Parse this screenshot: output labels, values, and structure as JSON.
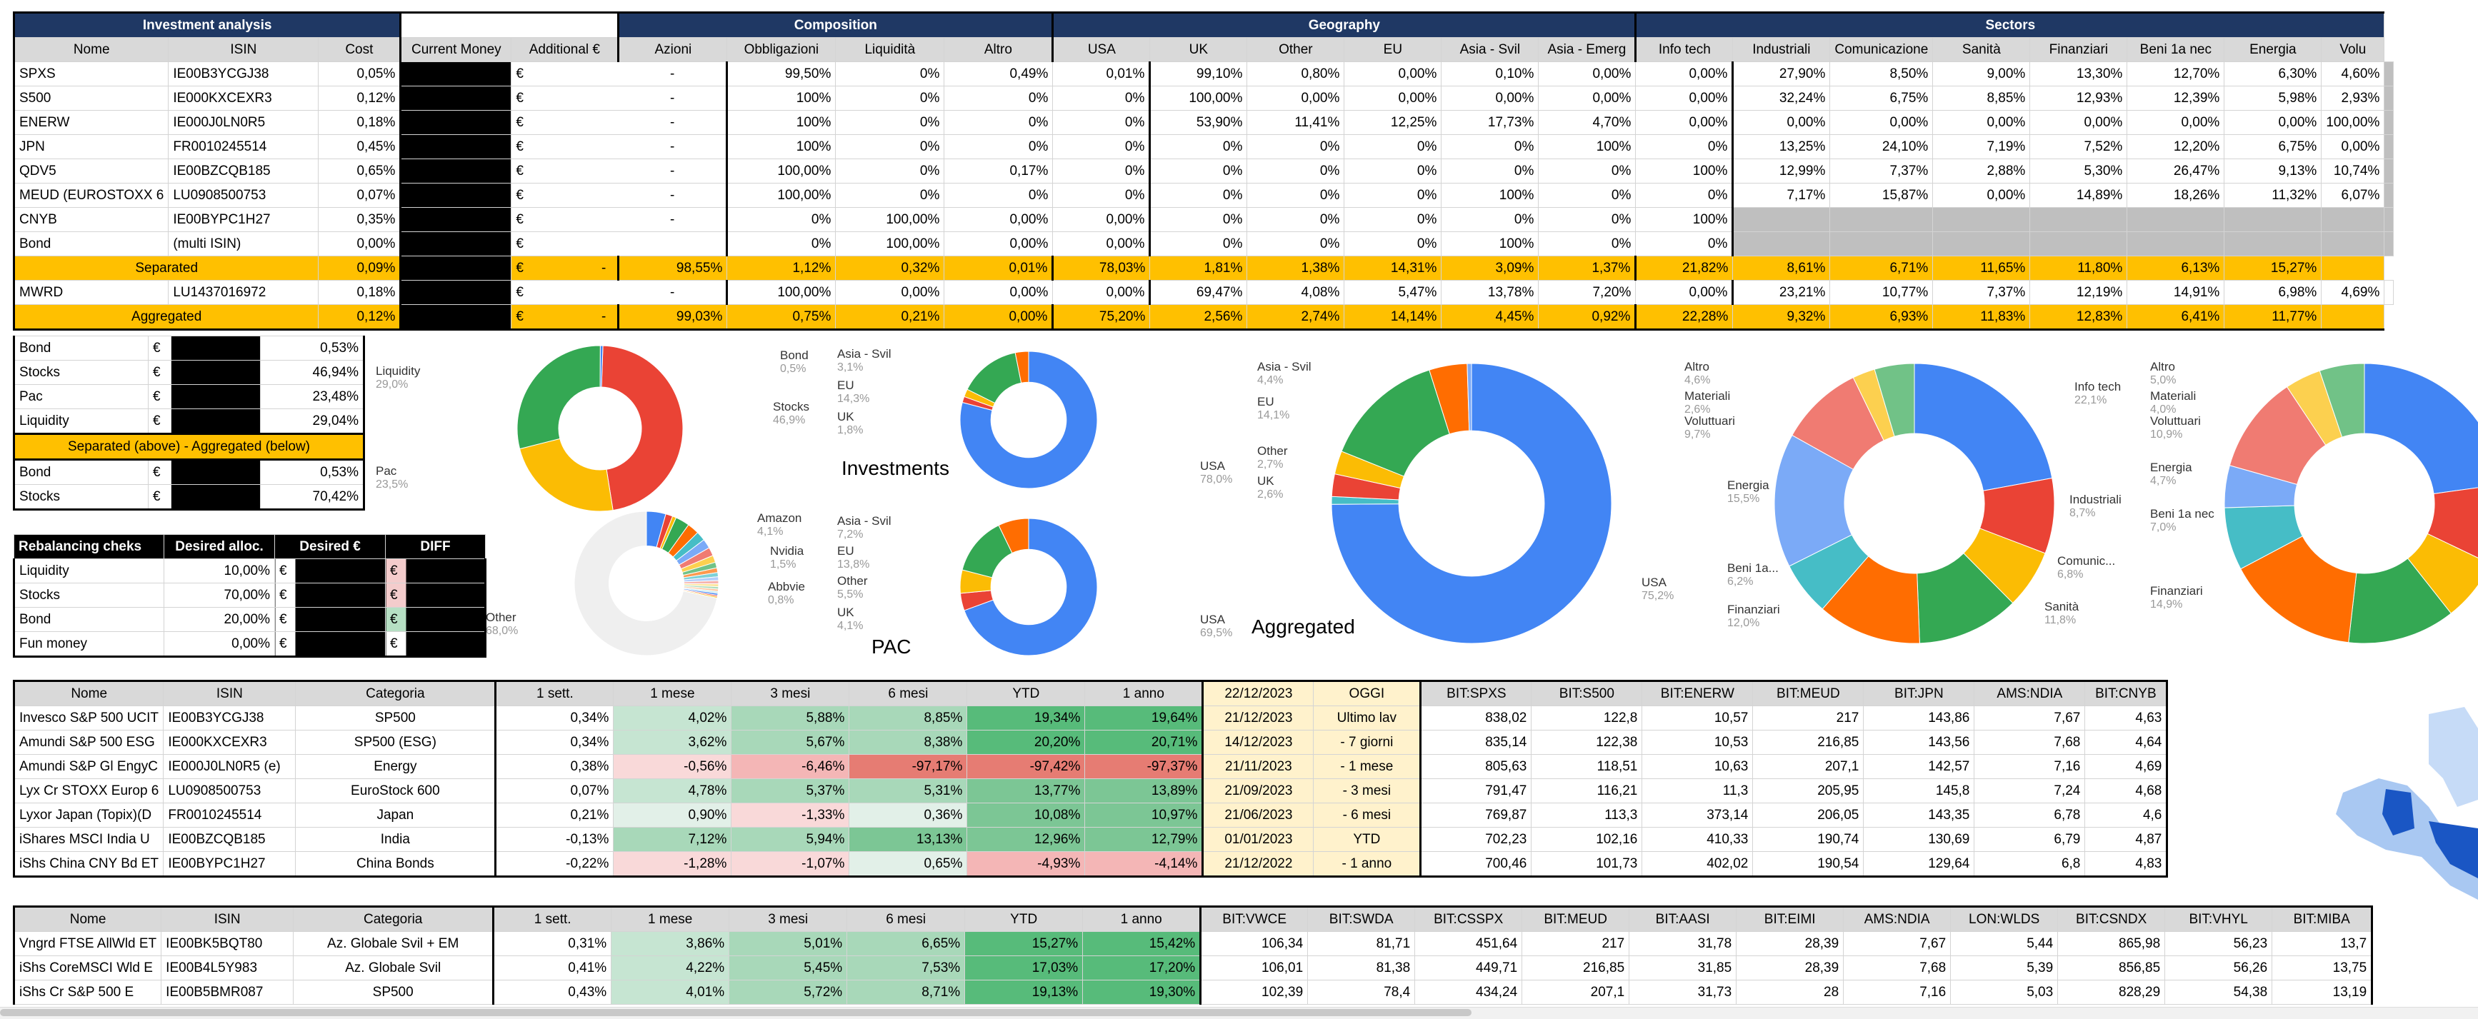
{
  "main_table": {
    "title": "Investment analysis",
    "sections": {
      "composition": "Composition",
      "geography": "Geography",
      "sectors": "Sectors"
    },
    "headers": [
      "Nome",
      "ISIN",
      "Cost",
      "Current Money",
      "Additional €",
      "Azioni",
      "Obbligazioni",
      "Liquidità",
      "Altro",
      "USA",
      "UK",
      "Other",
      "EU",
      "Asia - Svil",
      "Asia - Emerg",
      "Info tech",
      "Industriali",
      "Comunicazione",
      "Sanità",
      "Finanziari",
      "Beni 1a nec",
      "Energia",
      "Volu"
    ],
    "rows": [
      {
        "cells": [
          "SPXS",
          "IE00B3YCGJ38",
          "0,05%",
          "",
          "€",
          "-",
          "99,50%",
          "0%",
          "0,49%",
          "0,01%",
          "99,10%",
          "0,80%",
          "0,00%",
          "0,10%",
          "0,00%",
          "0,00%",
          "27,90%",
          "8,50%",
          "9,00%",
          "13,30%",
          "12,70%",
          "6,30%",
          "4,60%",
          ""
        ]
      },
      {
        "cells": [
          "S500",
          "IE000KXCEXR3",
          "0,12%",
          "",
          "€",
          "-",
          "100%",
          "0%",
          "0%",
          "0%",
          "100,00%",
          "0,00%",
          "0,00%",
          "0,00%",
          "0,00%",
          "0,00%",
          "32,24%",
          "6,75%",
          "8,85%",
          "12,93%",
          "12,39%",
          "5,98%",
          "2,93%",
          ""
        ]
      },
      {
        "cells": [
          "ENERW",
          "IE000J0LN0R5",
          "0,18%",
          "",
          "€",
          "-",
          "100%",
          "0%",
          "0%",
          "0%",
          "53,90%",
          "11,41%",
          "12,25%",
          "17,73%",
          "4,70%",
          "0,00%",
          "0,00%",
          "0,00%",
          "0,00%",
          "0,00%",
          "0,00%",
          "0,00%",
          "100,00%",
          ""
        ]
      },
      {
        "cells": [
          "JPN",
          "FR0010245514",
          "0,45%",
          "",
          "€",
          "-",
          "100%",
          "0%",
          "0%",
          "0%",
          "0%",
          "0%",
          "0%",
          "0%",
          "100%",
          "0%",
          "13,25%",
          "24,10%",
          "7,19%",
          "7,52%",
          "12,20%",
          "6,75%",
          "0,00%",
          ""
        ]
      },
      {
        "cells": [
          "QDV5",
          "IE00BZCQB185",
          "0,65%",
          "",
          "€",
          "-",
          "100,00%",
          "0%",
          "0,17%",
          "0%",
          "0%",
          "0%",
          "0%",
          "0%",
          "0%",
          "100%",
          "12,99%",
          "7,37%",
          "2,88%",
          "5,30%",
          "26,47%",
          "9,13%",
          "10,74%",
          ""
        ]
      },
      {
        "cells": [
          "MEUD (EUROSTOXX 6",
          "LU0908500753",
          "0,07%",
          "",
          "€",
          "-",
          "100,00%",
          "0%",
          "0%",
          "0%",
          "0%",
          "0%",
          "0%",
          "100%",
          "0%",
          "0%",
          "7,17%",
          "15,87%",
          "0,00%",
          "14,89%",
          "18,26%",
          "11,32%",
          "6,07%",
          ""
        ]
      },
      {
        "cells": [
          "CNYB",
          "IE00BYPC1H27",
          "0,35%",
          "",
          "€",
          "-",
          "0%",
          "100,00%",
          "0,00%",
          "0,00%",
          "0%",
          "0%",
          "0%",
          "0%",
          "0%",
          "100%",
          "",
          "",
          "",
          "",
          "",
          "",
          "",
          ""
        ]
      },
      {
        "cells": [
          "Bond",
          "(multi ISIN)",
          "0,00%",
          "",
          "€",
          "",
          "0%",
          "100,00%",
          "0,00%",
          "0,00%",
          "0%",
          "0%",
          "0%",
          "100%",
          "0%",
          "0%",
          "",
          "",
          "",
          "",
          "",
          "",
          "",
          ""
        ]
      }
    ],
    "separated": {
      "label": "Separated",
      "cost": "0,09%",
      "cur": "€",
      "add": "€",
      "dash": "-",
      "vals": [
        "98,55%",
        "1,12%",
        "0,32%",
        "0,01%",
        "78,03%",
        "1,81%",
        "1,38%",
        "14,31%",
        "3,09%",
        "1,37%",
        "21,82%",
        "8,61%",
        "6,71%",
        "11,65%",
        "11,80%",
        "6,13%",
        "15,27%",
        ""
      ]
    },
    "mwrd": {
      "cells": [
        "MWRD",
        "LU1437016972",
        "0,18%",
        "",
        "€",
        "-",
        "100,00%",
        "0,00%",
        "0,00%",
        "0,00%",
        "69,47%",
        "4,08%",
        "5,47%",
        "13,78%",
        "7,20%",
        "0,00%",
        "23,21%",
        "10,77%",
        "7,37%",
        "12,19%",
        "14,91%",
        "6,98%",
        "4,69%",
        ""
      ]
    },
    "aggregated": {
      "label": "Aggregated",
      "cost": "0,12%",
      "cur": "€",
      "add": "€",
      "dash": "-",
      "vals": [
        "99,03%",
        "0,75%",
        "0,21%",
        "0,00%",
        "75,20%",
        "2,56%",
        "2,74%",
        "14,14%",
        "4,45%",
        "0,92%",
        "22,28%",
        "9,32%",
        "6,93%",
        "11,83%",
        "12,83%",
        "6,41%",
        "11,77%",
        ""
      ]
    }
  },
  "alloc_table": {
    "rows": [
      [
        "Bond",
        "€",
        "0,53%"
      ],
      [
        "Stocks",
        "€",
        "46,94%"
      ],
      [
        "Pac",
        "€",
        "23,48%"
      ],
      [
        "Liquidity",
        "€",
        "29,04%"
      ]
    ],
    "banner": "Separated (above) - Aggregated (below)",
    "rows2": [
      [
        "Bond",
        "€",
        "0,53%"
      ],
      [
        "Stocks",
        "€",
        "70,42%"
      ]
    ]
  },
  "rebalancing": {
    "headers": [
      "Rebalancing cheks",
      "Desired alloc.",
      "Desired €",
      "DIFF"
    ],
    "rows": [
      [
        "Liquidity",
        "10,00%",
        "€",
        "€"
      ],
      [
        "Stocks",
        "70,00%",
        "€",
        "€"
      ],
      [
        "Bond",
        "20,00%",
        "€",
        "€"
      ],
      [
        "Fun money",
        "0,00%",
        "€",
        "€"
      ]
    ]
  },
  "charts": {
    "alloc": {
      "labels": [
        {
          "t": "Liquidity",
          "p": "29,0%"
        },
        {
          "t": "Bond",
          "p": "0,5%"
        },
        {
          "t": "Stocks",
          "p": "46,9%"
        },
        {
          "t": "Pac",
          "p": "23,5%"
        }
      ]
    },
    "stocks": {
      "labels": [
        {
          "t": "Amazon",
          "p": "4,1%"
        },
        {
          "t": "Nvidia",
          "p": "1,5%"
        },
        {
          "t": "Abbvie",
          "p": "0,8%"
        },
        {
          "t": "Other",
          "p": "68,0%"
        }
      ]
    },
    "investments": {
      "title": "Investments",
      "labels": [
        {
          "t": "Asia - Svil",
          "p": "3,1%"
        },
        {
          "t": "EU",
          "p": "14,3%"
        },
        {
          "t": "UK",
          "p": "1,8%"
        },
        {
          "t": "USA",
          "p": "78,0%"
        }
      ]
    },
    "pac": {
      "title": "PAC",
      "labels": [
        {
          "t": "Asia - Svil",
          "p": "7,2%"
        },
        {
          "t": "EU",
          "p": "13,8%"
        },
        {
          "t": "Other",
          "p": "5,5%"
        },
        {
          "t": "UK",
          "p": "4,1%"
        },
        {
          "t": "USA",
          "p": "69,5%"
        }
      ]
    },
    "aggregated": {
      "title": "Aggregated",
      "labels": [
        {
          "t": "Asia - Svil",
          "p": "4,4%"
        },
        {
          "t": "EU",
          "p": "14,1%"
        },
        {
          "t": "Other",
          "p": "2,7%"
        },
        {
          "t": "UK",
          "p": "2,6%"
        },
        {
          "t": "USA",
          "p": "75,2%"
        }
      ]
    },
    "sectors1": {
      "labels": [
        {
          "t": "Altro",
          "p": "4,6%"
        },
        {
          "t": "Materiali",
          "p": "2,6%"
        },
        {
          "t": "Voluttuari",
          "p": "9,7%"
        },
        {
          "t": "Energia",
          "p": "15,5%"
        },
        {
          "t": "Beni 1a...",
          "p": "6,2%"
        },
        {
          "t": "Finanziari",
          "p": "12,0%"
        },
        {
          "t": "Info tech",
          "p": "22,1%"
        },
        {
          "t": "Industriali",
          "p": "8,7%"
        },
        {
          "t": "Comunic...",
          "p": "6,8%"
        },
        {
          "t": "Sanità",
          "p": "11,8%"
        }
      ]
    },
    "sectors2": {
      "labels": [
        {
          "t": "Altro",
          "p": "5,0%"
        },
        {
          "t": "Materiali",
          "p": "4,0%"
        },
        {
          "t": "Voluttuari",
          "p": "10,9%"
        },
        {
          "t": "Energia",
          "p": "4,7%"
        },
        {
          "t": "Beni 1a nec",
          "p": "7,0%"
        },
        {
          "t": "Finanziari",
          "p": "14,9%"
        }
      ]
    }
  },
  "perf_table1": {
    "headers": [
      "Nome",
      "ISIN",
      "Categoria",
      "1 sett.",
      "1 mese",
      "3 mesi",
      "6 mesi",
      "YTD",
      "1 anno",
      "22/12/2023",
      "OGGI",
      "BIT:SPXS",
      "BIT:S500",
      "BIT:ENERW",
      "BIT:MEUD",
      "BIT:JPN",
      "AMS:NDIA",
      "BIT:CNYB"
    ],
    "rows": [
      [
        "Invesco S&P 500 UCIT",
        "IE00B3YCGJ38",
        "SP500",
        "0,34%",
        "4,02%",
        "5,88%",
        "8,85%",
        "19,34%",
        "19,64%",
        "21/12/2023",
        "Ultimo lav",
        "838,02",
        "122,8",
        "10,57",
        "217",
        "143,86",
        "7,67",
        "4,63"
      ],
      [
        "Amundi S&P 500 ESG",
        "IE000KXCEXR3",
        "SP500 (ESG)",
        "0,34%",
        "3,62%",
        "5,67%",
        "8,38%",
        "20,20%",
        "20,71%",
        "14/12/2023",
        "- 7 giorni",
        "835,14",
        "122,38",
        "10,53",
        "216,85",
        "143,56",
        "7,68",
        "4,64"
      ],
      [
        "Amundi S&P Gl EngyC",
        "IE000J0LN0R5 (e)",
        "Energy",
        "0,38%",
        "-0,56%",
        "-6,46%",
        "-97,17%",
        "-97,42%",
        "-97,37%",
        "21/11/2023",
        "- 1 mese",
        "805,63",
        "118,51",
        "10,63",
        "207,1",
        "142,57",
        "7,16",
        "4,69"
      ],
      [
        "Lyx Cr STOXX Europ 6",
        "LU0908500753",
        "EuroStock 600",
        "0,07%",
        "4,78%",
        "5,37%",
        "5,31%",
        "13,77%",
        "13,89%",
        "21/09/2023",
        "- 3 mesi",
        "791,47",
        "116,21",
        "11,3",
        "205,95",
        "145,8",
        "7,24",
        "4,68"
      ],
      [
        "Lyxor Japan (Topix)(D",
        "FR0010245514",
        "Japan",
        "0,21%",
        "0,90%",
        "-1,33%",
        "0,36%",
        "10,08%",
        "10,97%",
        "21/06/2023",
        "- 6 mesi",
        "769,87",
        "113,3",
        "373,14",
        "206,05",
        "143,35",
        "6,78",
        "4,6"
      ],
      [
        "iShares MSCI India U",
        "IE00BZCQB185",
        "India",
        "-0,13%",
        "7,12%",
        "5,94%",
        "13,13%",
        "12,96%",
        "12,79%",
        "01/01/2023",
        "YTD",
        "702,23",
        "102,16",
        "410,33",
        "190,74",
        "130,69",
        "6,79",
        "4,87"
      ],
      [
        "iShs China CNY Bd ET",
        "IE00BYPC1H27",
        "China Bonds",
        "-0,22%",
        "-1,28%",
        "-1,07%",
        "0,65%",
        "-4,93%",
        "-4,14%",
        "21/12/2022",
        "- 1 anno",
        "700,46",
        "101,73",
        "402,02",
        "190,54",
        "129,64",
        "6,8",
        "4,83"
      ]
    ]
  },
  "perf_table2": {
    "headers": [
      "Nome",
      "ISIN",
      "Categoria",
      "1 sett.",
      "1 mese",
      "3 mesi",
      "6 mesi",
      "YTD",
      "1 anno",
      "BIT:VWCE",
      "BIT:SWDA",
      "BIT:CSSPX",
      "BIT:MEUD",
      "BIT:AASI",
      "BIT:EIMI",
      "AMS:NDIA",
      "LON:WLDS",
      "BIT:CSNDX",
      "BIT:VHYL",
      "BIT:MIBA"
    ],
    "rows": [
      [
        "Vngrd FTSE AllWld ET",
        "IE00BK5BQT80",
        "Az. Globale Svil + EM",
        "0,31%",
        "3,86%",
        "5,01%",
        "6,65%",
        "15,27%",
        "15,42%",
        "106,34",
        "81,71",
        "451,64",
        "217",
        "31,78",
        "28,39",
        "7,67",
        "5,44",
        "865,98",
        "56,23",
        "13,7"
      ],
      [
        "iShs CoreMSCI Wld E",
        "IE00B4L5Y983",
        "Az. Globale Svil",
        "0,41%",
        "4,22%",
        "5,45%",
        "7,53%",
        "17,03%",
        "17,20%",
        "106,01",
        "81,38",
        "449,71",
        "216,85",
        "31,85",
        "28,39",
        "7,68",
        "5,39",
        "856,85",
        "56,26",
        "13,75"
      ],
      [
        "iShs Cr S&P 500 E",
        "IE00B5BMR087",
        "SP500",
        "0,43%",
        "4,01%",
        "5,72%",
        "8,71%",
        "19,13%",
        "19,30%",
        "102,39",
        "78,4",
        "434,24",
        "207,1",
        "31,73",
        "28",
        "7,16",
        "5,03",
        "828,29",
        "54,38",
        "13,19"
      ]
    ]
  }
}
